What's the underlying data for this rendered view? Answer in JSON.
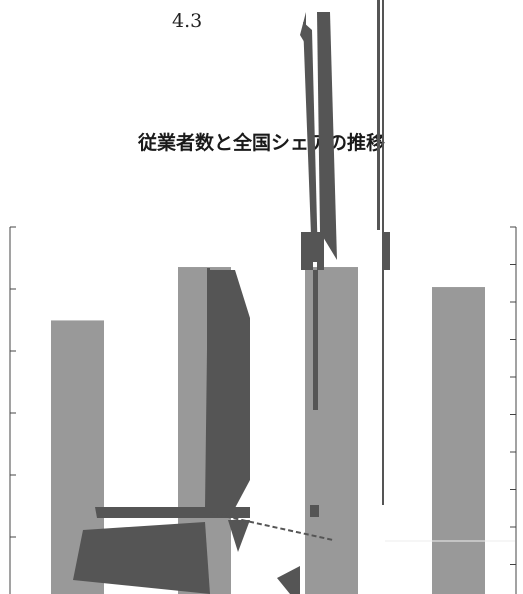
{
  "section_number": "4.3",
  "chart_data": {
    "type": "bar",
    "title": "従業者数と全国シェアの推移",
    "xlabel": "",
    "ylabel": "",
    "categories": [
      "",
      "",
      "",
      ""
    ],
    "series": [
      {
        "values": [
          4.1,
          4.9,
          4.9,
          4.6
        ]
      }
    ],
    "ylim": [
      0,
      5.5
    ],
    "y2lim": [
      0,
      5.5
    ],
    "grid": false,
    "legend": "none",
    "colors": {
      "bar": "#999999",
      "overlay": "#555555",
      "axis": "#444444"
    }
  }
}
